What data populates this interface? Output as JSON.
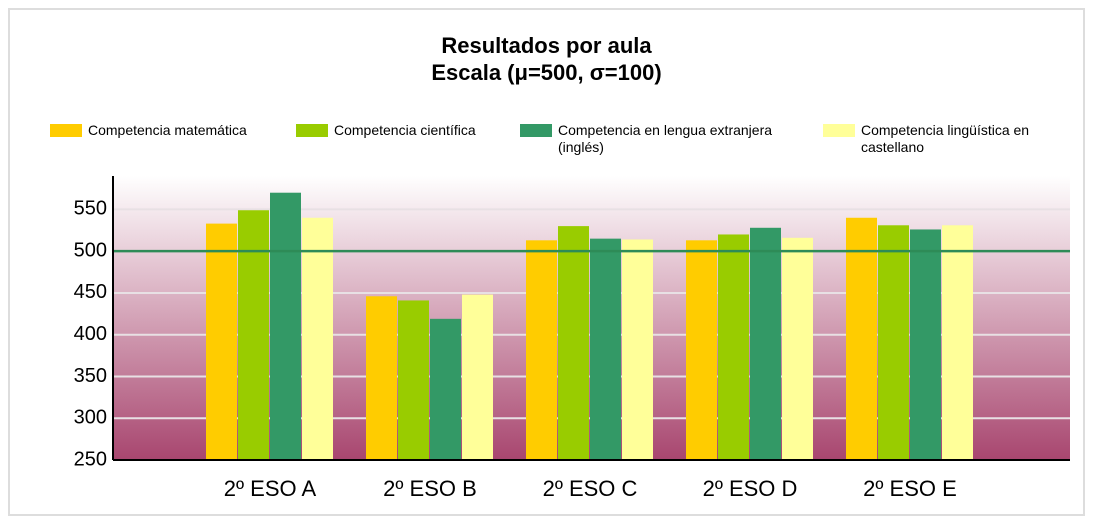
{
  "chart_data": {
    "type": "bar",
    "title": "Resultados por aula",
    "subtitle": "Escala (μ=500, σ=100)",
    "categories": [
      "2º ESO A",
      "2º ESO B",
      "2º ESO C",
      "2º ESO D",
      "2º ESO E"
    ],
    "series": [
      {
        "name": "Competencia matemática",
        "color": "#ffcc00",
        "values": [
          533,
          446,
          513,
          513,
          540
        ]
      },
      {
        "name": "Competencia científica",
        "color": "#99cc00",
        "values": [
          549,
          441,
          530,
          520,
          531
        ]
      },
      {
        "name": "Competencia en lengua extranjera (inglés)",
        "color": "#339966",
        "values": [
          570,
          419,
          515,
          528,
          526
        ]
      },
      {
        "name": "Competencia lingüística en castellano",
        "color": "#ffff99",
        "values": [
          540,
          448,
          514,
          516,
          531
        ]
      }
    ],
    "reference_line": 500,
    "ylim": [
      250,
      590
    ],
    "yticks": [
      250,
      300,
      350,
      400,
      450,
      500,
      550
    ],
    "grid": true
  }
}
